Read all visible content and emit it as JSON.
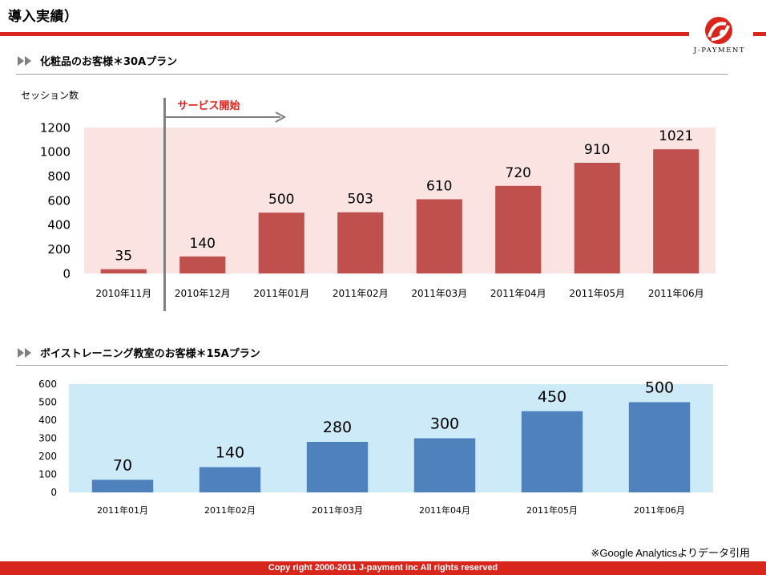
{
  "header": {
    "title": "導入実績）",
    "logo_text": "J-PAYMENT"
  },
  "section1": {
    "heading": "化粧品のお客様＊30Aプラン",
    "y_axis_title": "セッション数",
    "service_start_label": "サービス開始"
  },
  "section2": {
    "heading": "ボイストレーニング教室のお客様＊15Aプラン"
  },
  "footer": {
    "copyright": "Copy right 2000-2011 J-payment inc All rights reserved",
    "source_note": "※Google Analyticsよりデータ引用"
  },
  "colors": {
    "brand_red": "#d9261c",
    "chart1_bar": "#c0504d",
    "chart1_bg": "#fbe3e2",
    "chart2_bar": "#4f81bd",
    "chart2_bg": "#cdeaf9"
  },
  "chart_data": [
    {
      "type": "bar",
      "categories": [
        "2010年11月",
        "2010年12月",
        "2011年01月",
        "2011年02月",
        "2011年03月",
        "2011年04月",
        "2011年05月",
        "2011年06月"
      ],
      "values": [
        35,
        140,
        500,
        503,
        610,
        720,
        910,
        1021
      ],
      "ylim": [
        0,
        1200
      ],
      "yticks": [
        0,
        200,
        400,
        600,
        800,
        1000,
        1200
      ],
      "ylabel": "セッション数",
      "annotation": "サービス開始",
      "grid": false
    },
    {
      "type": "bar",
      "categories": [
        "2011年01月",
        "2011年02月",
        "2011年03月",
        "2011年04月",
        "2011年05月",
        "2011年06月"
      ],
      "values": [
        70,
        140,
        280,
        300,
        450,
        500
      ],
      "ylim": [
        0,
        600
      ],
      "yticks": [
        0,
        100,
        200,
        300,
        400,
        500,
        600
      ],
      "grid": false
    }
  ]
}
